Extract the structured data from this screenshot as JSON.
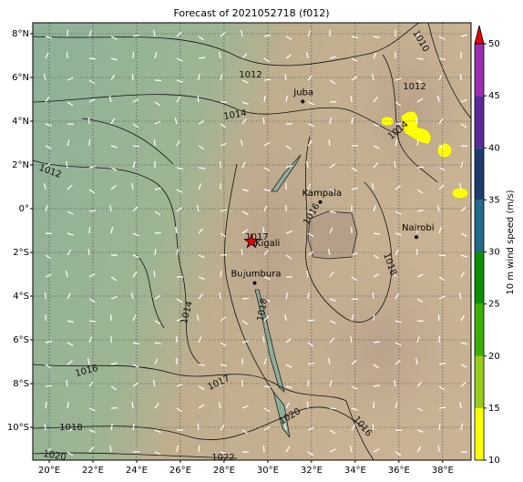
{
  "chart_data": {
    "type": "map",
    "title": "Forecast of 2021052718 (f012)",
    "xlim": [
      19.25,
      39.3
    ],
    "ylim": [
      -11.5,
      8.5
    ],
    "xticks": [
      {
        "value": 20,
        "label": "20°E"
      },
      {
        "value": 22,
        "label": "22°E"
      },
      {
        "value": 24,
        "label": "24°E"
      },
      {
        "value": 26,
        "label": "26°E"
      },
      {
        "value": 28,
        "label": "28°E"
      },
      {
        "value": 30,
        "label": "30°E"
      },
      {
        "value": 32,
        "label": "32°E"
      },
      {
        "value": 34,
        "label": "34°E"
      },
      {
        "value": 36,
        "label": "36°E"
      },
      {
        "value": 38,
        "label": "38°E"
      }
    ],
    "yticks": [
      {
        "value": 8,
        "label": "8°N"
      },
      {
        "value": 6,
        "label": "6°N"
      },
      {
        "value": 4,
        "label": "4°N"
      },
      {
        "value": 2,
        "label": "2°N"
      },
      {
        "value": 0,
        "label": "0°"
      },
      {
        "value": -2,
        "label": "2°S"
      },
      {
        "value": -4,
        "label": "4°S"
      },
      {
        "value": -6,
        "label": "6°S"
      },
      {
        "value": -8,
        "label": "8°S"
      },
      {
        "value": -10,
        "label": "10°S"
      }
    ],
    "grid": true,
    "cities": [
      {
        "name": "Juba",
        "x": 31.6,
        "y": 4.9
      },
      {
        "name": "Kampala",
        "x": 32.4,
        "y": 0.3
      },
      {
        "name": "Nairobi",
        "x": 36.8,
        "y": -1.3
      },
      {
        "name": "Kigali",
        "x": 29.25,
        "y": -1.5
      },
      {
        "name": "Bujumbura",
        "x": 29.4,
        "y": -3.4
      }
    ],
    "star_color": "#e00000",
    "contour_labels": [
      1012,
      1014,
      1012,
      1014,
      1016,
      1017,
      1018,
      1020,
      1022,
      1020,
      1016,
      1018,
      1016,
      1014,
      1017,
      1018,
      1012,
      1010
    ],
    "colorbar": {
      "label": "10 m wind speed (m/s)",
      "clim": [
        10,
        50
      ],
      "ticks": [
        10,
        15,
        20,
        25,
        30,
        35,
        40,
        45,
        50
      ],
      "colors": [
        "#ffff00",
        "#9acd1a",
        "#3cb000",
        "#0a9000",
        "#226a88",
        "#1f3b6e",
        "#5a2a9a",
        "#9b2fb2"
      ],
      "extend_color": "#e00000"
    }
  }
}
